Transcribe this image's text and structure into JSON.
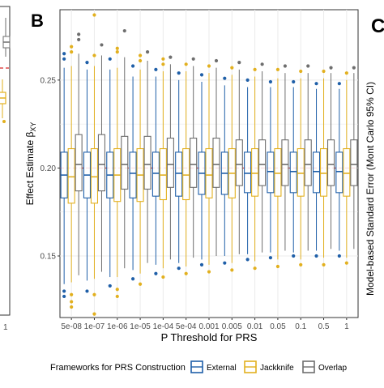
{
  "colors": {
    "external": "#1f5fa8",
    "jackknife": "#e2b01f",
    "overlap": "#6e6e6e",
    "reference_line": "#d62728",
    "grid": "#ebebeb",
    "axis_text": "#4d4d4d"
  },
  "panels": {
    "left_tick": "1",
    "b_label": "B",
    "c_label": "C",
    "c_ylabel": "Model-based Standard Error (Mont Carlo 95% CI)"
  },
  "chart_data": {
    "type": "boxplot",
    "panel": "B",
    "xlabel": "P Threshold for PRS",
    "ylabel": "Effect Estimate β",
    "ylabel_subscript": "XY",
    "categories": [
      "5e-08",
      "1e-07",
      "1e-06",
      "1e-05",
      "1e-04",
      "5e-04",
      "0.001",
      "0.005",
      "0.01",
      "0.05",
      "0.1",
      "0.5",
      "1"
    ],
    "ylim": [
      0.115,
      0.29
    ],
    "yticks": [
      0.15,
      0.2,
      0.25
    ],
    "ytick_labels": [
      "0.15",
      "0.20",
      "0.25"
    ],
    "reference_line": 0.2,
    "grid": true,
    "legend_position": "bottom",
    "legend_title": "Frameworks for PRS Construction",
    "series": [
      {
        "name": "External",
        "boxes": [
          {
            "whisker_low": 0.134,
            "q1": 0.183,
            "median": 0.196,
            "q3": 0.209,
            "whisker_high": 0.257,
            "outliers": [
              0.262,
              0.265,
              0.13,
              0.127
            ]
          },
          {
            "whisker_low": 0.136,
            "q1": 0.183,
            "median": 0.196,
            "q3": 0.209,
            "whisker_high": 0.256,
            "outliers": [
              0.26,
              0.13
            ]
          },
          {
            "whisker_low": 0.138,
            "q1": 0.183,
            "median": 0.196,
            "q3": 0.209,
            "whisker_high": 0.256,
            "outliers": [
              0.262,
              0.133
            ]
          },
          {
            "whisker_low": 0.142,
            "q1": 0.183,
            "median": 0.197,
            "q3": 0.209,
            "whisker_high": 0.252,
            "outliers": [
              0.258,
              0.137
            ]
          },
          {
            "whisker_low": 0.145,
            "q1": 0.184,
            "median": 0.197,
            "q3": 0.209,
            "whisker_high": 0.252,
            "outliers": [
              0.256,
              0.14
            ]
          },
          {
            "whisker_low": 0.146,
            "q1": 0.184,
            "median": 0.197,
            "q3": 0.209,
            "whisker_high": 0.25,
            "outliers": [
              0.254,
              0.143
            ]
          },
          {
            "whisker_low": 0.148,
            "q1": 0.185,
            "median": 0.197,
            "q3": 0.209,
            "whisker_high": 0.249,
            "outliers": [
              0.253,
              0.145
            ]
          },
          {
            "whisker_low": 0.15,
            "q1": 0.185,
            "median": 0.197,
            "q3": 0.209,
            "whisker_high": 0.247,
            "outliers": [
              0.251,
              0.146
            ]
          },
          {
            "whisker_low": 0.151,
            "q1": 0.186,
            "median": 0.197,
            "q3": 0.209,
            "whisker_high": 0.246,
            "outliers": [
              0.25,
              0.148
            ]
          },
          {
            "whisker_low": 0.152,
            "q1": 0.186,
            "median": 0.198,
            "q3": 0.209,
            "whisker_high": 0.246,
            "outliers": [
              0.249,
              0.149
            ]
          },
          {
            "whisker_low": 0.152,
            "q1": 0.186,
            "median": 0.198,
            "q3": 0.209,
            "whisker_high": 0.246,
            "outliers": [
              0.249,
              0.15
            ]
          },
          {
            "whisker_low": 0.153,
            "q1": 0.186,
            "median": 0.198,
            "q3": 0.209,
            "whisker_high": 0.245,
            "outliers": [
              0.248,
              0.15
            ]
          },
          {
            "whisker_low": 0.153,
            "q1": 0.186,
            "median": 0.198,
            "q3": 0.209,
            "whisker_high": 0.245,
            "outliers": [
              0.248,
              0.15
            ]
          }
        ]
      },
      {
        "name": "Jackknife",
        "boxes": [
          {
            "whisker_low": 0.135,
            "q1": 0.18,
            "median": 0.195,
            "q3": 0.211,
            "whisker_high": 0.258,
            "outliers": [
              0.266,
              0.269,
              0.128,
              0.124,
              0.121
            ]
          },
          {
            "whisker_low": 0.137,
            "q1": 0.18,
            "median": 0.195,
            "q3": 0.211,
            "whisker_high": 0.258,
            "outliers": [
              0.264,
              0.287,
              0.128,
              0.117
            ]
          },
          {
            "whisker_low": 0.138,
            "q1": 0.181,
            "median": 0.196,
            "q3": 0.211,
            "whisker_high": 0.257,
            "outliers": [
              0.266,
              0.268,
              0.131,
              0.127
            ]
          },
          {
            "whisker_low": 0.14,
            "q1": 0.181,
            "median": 0.196,
            "q3": 0.211,
            "whisker_high": 0.256,
            "outliers": [
              0.261,
              0.264,
              0.134
            ]
          },
          {
            "whisker_low": 0.143,
            "q1": 0.182,
            "median": 0.196,
            "q3": 0.211,
            "whisker_high": 0.255,
            "outliers": [
              0.259,
              0.262,
              0.138
            ]
          },
          {
            "whisker_low": 0.144,
            "q1": 0.182,
            "median": 0.196,
            "q3": 0.211,
            "whisker_high": 0.255,
            "outliers": [
              0.259,
              0.14
            ]
          },
          {
            "whisker_low": 0.145,
            "q1": 0.183,
            "median": 0.196,
            "q3": 0.211,
            "whisker_high": 0.254,
            "outliers": [
              0.258,
              0.141
            ]
          },
          {
            "whisker_low": 0.146,
            "q1": 0.183,
            "median": 0.197,
            "q3": 0.211,
            "whisker_high": 0.253,
            "outliers": [
              0.257,
              0.142
            ]
          },
          {
            "whisker_low": 0.147,
            "q1": 0.184,
            "median": 0.197,
            "q3": 0.211,
            "whisker_high": 0.252,
            "outliers": [
              0.256,
              0.143
            ]
          },
          {
            "whisker_low": 0.148,
            "q1": 0.184,
            "median": 0.197,
            "q3": 0.211,
            "whisker_high": 0.251,
            "outliers": [
              0.256,
              0.144
            ]
          },
          {
            "whisker_low": 0.148,
            "q1": 0.184,
            "median": 0.197,
            "q3": 0.211,
            "whisker_high": 0.251,
            "outliers": [
              0.255,
              0.145
            ]
          },
          {
            "whisker_low": 0.149,
            "q1": 0.184,
            "median": 0.197,
            "q3": 0.211,
            "whisker_high": 0.251,
            "outliers": [
              0.255,
              0.145
            ]
          },
          {
            "whisker_low": 0.149,
            "q1": 0.184,
            "median": 0.197,
            "q3": 0.211,
            "whisker_high": 0.25,
            "outliers": [
              0.254,
              0.146
            ]
          }
        ]
      },
      {
        "name": "Overlap",
        "boxes": [
          {
            "whisker_low": 0.139,
            "q1": 0.187,
            "median": 0.202,
            "q3": 0.219,
            "whisker_high": 0.265,
            "outliers": [
              0.273,
              0.276
            ]
          },
          {
            "whisker_low": 0.141,
            "q1": 0.187,
            "median": 0.202,
            "q3": 0.219,
            "whisker_high": 0.264,
            "outliers": [
              0.27
            ]
          },
          {
            "whisker_low": 0.143,
            "q1": 0.188,
            "median": 0.202,
            "q3": 0.218,
            "whisker_high": 0.263,
            "outliers": [
              0.278
            ]
          },
          {
            "whisker_low": 0.146,
            "q1": 0.188,
            "median": 0.202,
            "q3": 0.218,
            "whisker_high": 0.261,
            "outliers": [
              0.266
            ]
          },
          {
            "whisker_low": 0.148,
            "q1": 0.189,
            "median": 0.202,
            "q3": 0.217,
            "whisker_high": 0.259,
            "outliers": [
              0.263
            ]
          },
          {
            "whisker_low": 0.149,
            "q1": 0.189,
            "median": 0.202,
            "q3": 0.217,
            "whisker_high": 0.258,
            "outliers": [
              0.262
            ]
          },
          {
            "whisker_low": 0.15,
            "q1": 0.189,
            "median": 0.202,
            "q3": 0.217,
            "whisker_high": 0.257,
            "outliers": [
              0.261
            ]
          },
          {
            "whisker_low": 0.151,
            "q1": 0.19,
            "median": 0.202,
            "q3": 0.216,
            "whisker_high": 0.256,
            "outliers": [
              0.26
            ]
          },
          {
            "whisker_low": 0.152,
            "q1": 0.19,
            "median": 0.202,
            "q3": 0.216,
            "whisker_high": 0.255,
            "outliers": [
              0.259
            ]
          },
          {
            "whisker_low": 0.153,
            "q1": 0.19,
            "median": 0.202,
            "q3": 0.216,
            "whisker_high": 0.254,
            "outliers": [
              0.258
            ]
          },
          {
            "whisker_low": 0.153,
            "q1": 0.19,
            "median": 0.202,
            "q3": 0.216,
            "whisker_high": 0.254,
            "outliers": [
              0.258
            ]
          },
          {
            "whisker_low": 0.154,
            "q1": 0.19,
            "median": 0.202,
            "q3": 0.216,
            "whisker_high": 0.254,
            "outliers": [
              0.257
            ]
          },
          {
            "whisker_low": 0.154,
            "q1": 0.19,
            "median": 0.202,
            "q3": 0.216,
            "whisker_high": 0.254,
            "outliers": [
              0.257
            ]
          }
        ]
      }
    ]
  }
}
